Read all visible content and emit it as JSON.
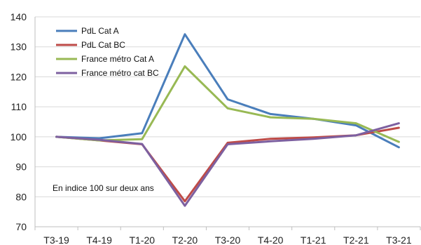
{
  "chart_data": {
    "type": "line",
    "categories": [
      "T3-19",
      "T4-19",
      "T1-20",
      "T2-20",
      "T3-20",
      "T4-20",
      "T1-21",
      "T2-21",
      "T3-21"
    ],
    "ylim": [
      70,
      140
    ],
    "yticks": [
      70,
      80,
      90,
      100,
      110,
      120,
      130,
      140
    ],
    "grid": "horizontal",
    "legend_position": "top-left",
    "annotation": "En indice 100 sur deux ans",
    "series": [
      {
        "name": "PdL Cat A",
        "color": "#4a7ebb",
        "values": [
          100,
          99.5,
          101.2,
          134.2,
          112.5,
          107.6,
          106,
          103.8,
          96.5
        ]
      },
      {
        "name": "PdL Cat BC",
        "color": "#be4b48",
        "values": [
          100,
          98.8,
          97.5,
          78.5,
          98,
          99.3,
          99.8,
          100.5,
          103
        ]
      },
      {
        "name": "France métro Cat A",
        "color": "#98b954",
        "values": [
          100,
          98.8,
          99.2,
          123.5,
          109.5,
          106.5,
          106,
          104.5,
          98.3
        ]
      },
      {
        "name": "France métro cat BC",
        "color": "#7d60a0",
        "values": [
          100,
          99,
          97.6,
          77,
          97.5,
          98.5,
          99.3,
          100.5,
          104.5
        ]
      }
    ]
  }
}
